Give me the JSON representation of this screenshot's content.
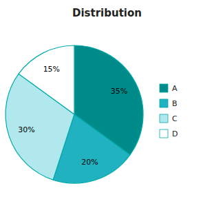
{
  "chart_data": {
    "type": "pie",
    "title": "Distribution",
    "categories": [
      "A",
      "B",
      "C",
      "D"
    ],
    "values": [
      35,
      20,
      30,
      15
    ],
    "value_labels": [
      "35%",
      "20%",
      "30%",
      "15%"
    ],
    "colors": [
      "#008B8B",
      "#20B2C0",
      "#B0E8EE",
      "#FFFFFF"
    ],
    "data_labels": true,
    "legend": "right"
  }
}
